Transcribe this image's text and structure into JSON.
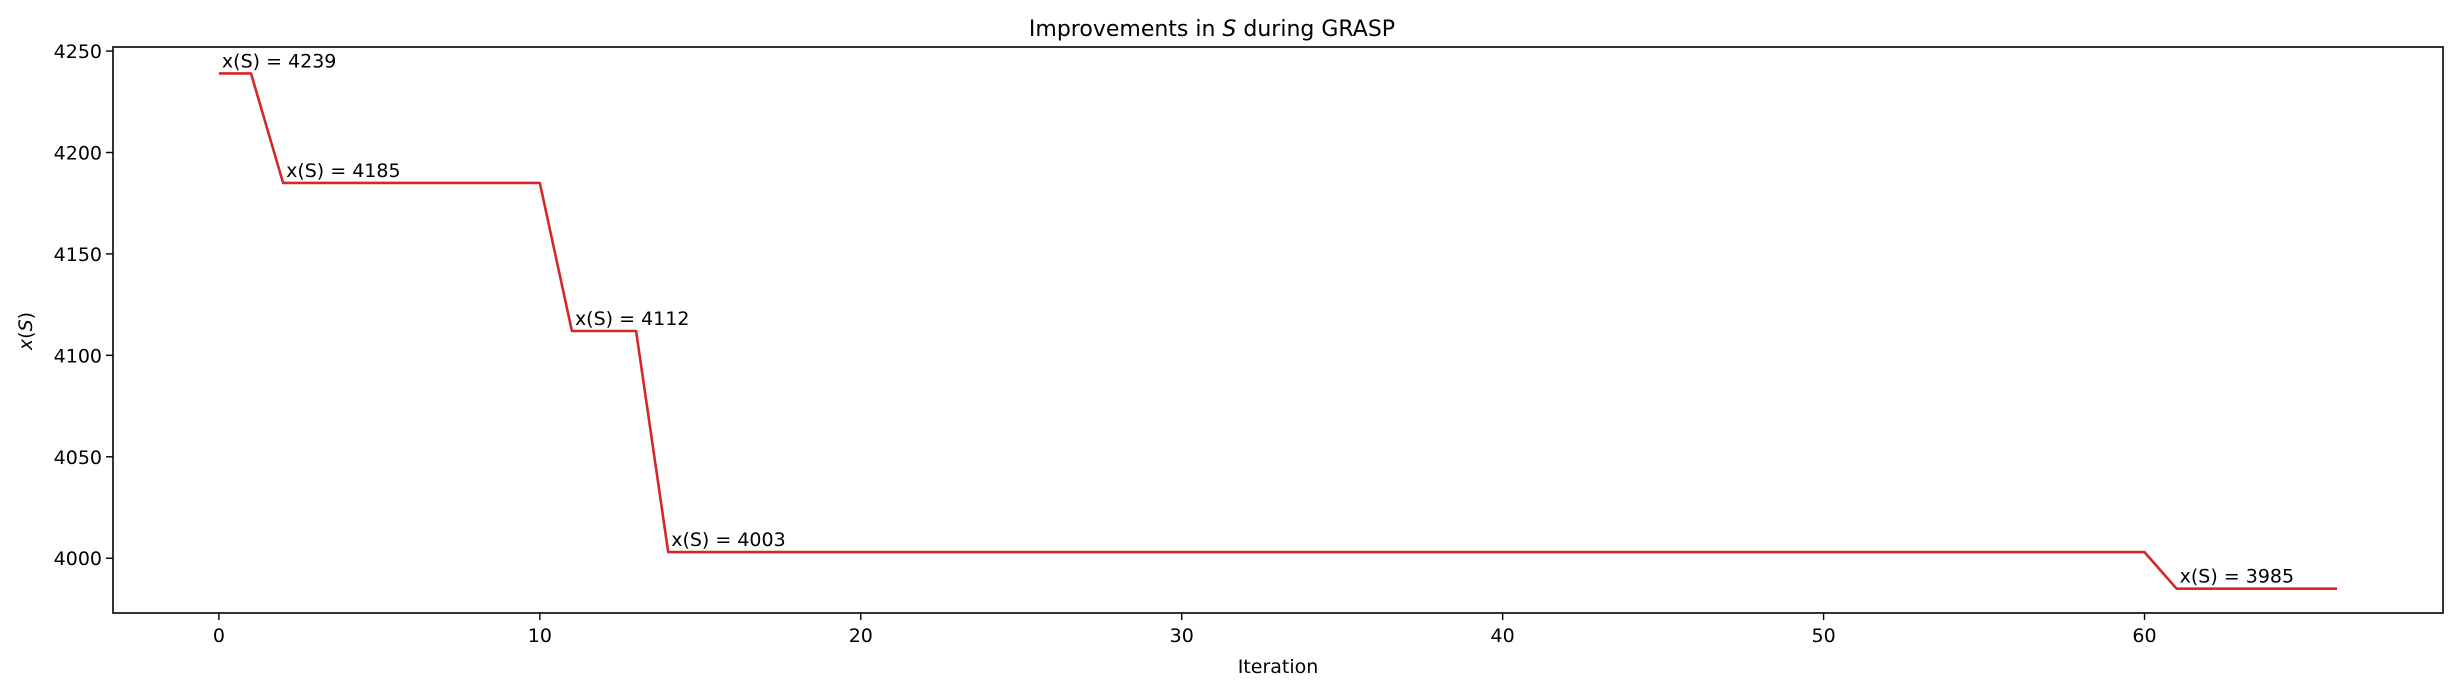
{
  "chart_data": {
    "type": "line",
    "title_prefix": "Improvements in ",
    "title_symbol": "S",
    "title_suffix": " during GRASP",
    "xlabel": "Iteration",
    "ylabel_symbol": "x",
    "ylabel_open": "(",
    "ylabel_arg": "S",
    "ylabel_close": ")",
    "xlim": [
      -3.3,
      69.3
    ],
    "ylim": [
      3973,
      4252
    ],
    "xticks": [
      0,
      10,
      20,
      30,
      40,
      50,
      60
    ],
    "yticks": [
      4000,
      4050,
      4100,
      4150,
      4200,
      4250
    ],
    "grid": false,
    "series": [
      {
        "color": "#d62728",
        "x": [
          0,
          1,
          2,
          3,
          4,
          5,
          6,
          7,
          8,
          9,
          10,
          11,
          12,
          13,
          14,
          15,
          16,
          17,
          18,
          19,
          20,
          21,
          22,
          23,
          24,
          25,
          26,
          27,
          28,
          29,
          30,
          31,
          32,
          33,
          34,
          35,
          36,
          37,
          38,
          39,
          40,
          41,
          42,
          43,
          44,
          45,
          46,
          47,
          48,
          49,
          50,
          51,
          52,
          53,
          54,
          55,
          56,
          57,
          58,
          59,
          60,
          61,
          62,
          63,
          64,
          65,
          66
        ],
        "y": [
          4239,
          4239,
          4185,
          4185,
          4185,
          4185,
          4185,
          4185,
          4185,
          4185,
          4185,
          4112,
          4112,
          4112,
          4003,
          4003,
          4003,
          4003,
          4003,
          4003,
          4003,
          4003,
          4003,
          4003,
          4003,
          4003,
          4003,
          4003,
          4003,
          4003,
          4003,
          4003,
          4003,
          4003,
          4003,
          4003,
          4003,
          4003,
          4003,
          4003,
          4003,
          4003,
          4003,
          4003,
          4003,
          4003,
          4003,
          4003,
          4003,
          4003,
          4003,
          4003,
          4003,
          4003,
          4003,
          4003,
          4003,
          4003,
          4003,
          4003,
          4003,
          3985,
          3985,
          3985,
          3985,
          3985,
          3985
        ]
      }
    ],
    "annotations": [
      {
        "x": 0,
        "y": 4239,
        "text": "x(S) = 4239"
      },
      {
        "x": 2,
        "y": 4185,
        "text": "x(S) = 4185"
      },
      {
        "x": 11,
        "y": 4112,
        "text": "x(S) = 4112"
      },
      {
        "x": 14,
        "y": 4003,
        "text": "x(S) = 4003"
      },
      {
        "x": 61,
        "y": 3985,
        "text": "x(S) = 3985"
      }
    ]
  }
}
